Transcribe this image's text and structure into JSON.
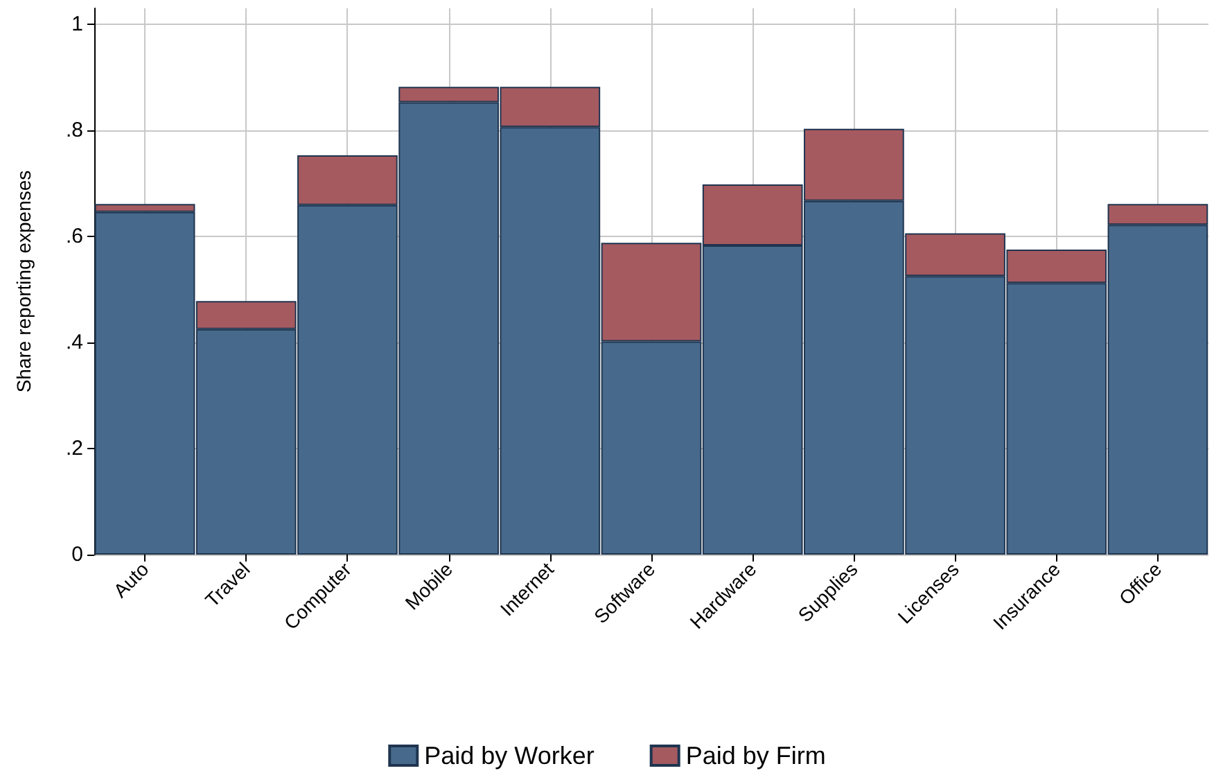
{
  "chart_data": {
    "type": "bar",
    "ylabel": "Share reporting expenses",
    "stacked": true,
    "categories": [
      "Auto",
      "Travel",
      "Computer",
      "Mobile",
      "Internet",
      "Software",
      "Hardware",
      "Supplies",
      "Licenses",
      "Insurance",
      "Office"
    ],
    "series": [
      {
        "name": "Paid by Worker",
        "color": "#476a8c",
        "values": [
          0.646,
          0.425,
          0.659,
          0.853,
          0.806,
          0.402,
          0.583,
          0.667,
          0.525,
          0.512,
          0.622
        ]
      },
      {
        "name": "Paid by Firm",
        "color": "#a55a60",
        "values": [
          0.015,
          0.053,
          0.094,
          0.029,
          0.076,
          0.186,
          0.115,
          0.136,
          0.081,
          0.063,
          0.039
        ]
      }
    ],
    "ylim": [
      0,
      1.03
    ],
    "yticks": [
      {
        "value": 0,
        "label": "0"
      },
      {
        "value": 0.2,
        "label": ".2"
      },
      {
        "value": 0.4,
        "label": ".4"
      },
      {
        "value": 0.6,
        "label": ".6"
      },
      {
        "value": 0.8,
        "label": ".8"
      },
      {
        "value": 1,
        "label": "1"
      }
    ],
    "grid": true,
    "legend": "bottom"
  }
}
